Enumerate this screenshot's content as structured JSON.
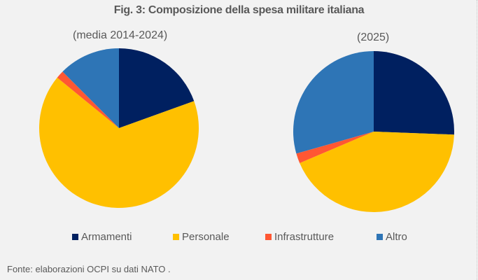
{
  "chart_data": [
    {
      "type": "pie",
      "title": "Fig. 3: Composizione della spesa militare italiana",
      "subtitle": "(media 2014-2024)",
      "categories": [
        "Armamenti",
        "Personale",
        "Infrastrutture",
        "Altro"
      ],
      "values": [
        19.5,
        66.4,
        1.6,
        12.5
      ],
      "unit": "%",
      "colors": [
        "#002060",
        "#ffc000",
        "#ff5733",
        "#2e75b6"
      ]
    },
    {
      "type": "pie",
      "title": "Fig. 3: Composizione della spesa militare italiana",
      "subtitle": "(2025)",
      "categories": [
        "Armamenti",
        "Personale",
        "Infrastrutture",
        "Altro"
      ],
      "values": [
        25.6,
        43.0,
        2.0,
        29.4
      ],
      "unit": "%",
      "colors": [
        "#002060",
        "#ffc000",
        "#ff5733",
        "#2e75b6"
      ]
    }
  ],
  "title": "Fig. 3: Composizione della spesa militare italiana",
  "subtitles": [
    "(media 2014-2024)",
    "(2025)"
  ],
  "legend": {
    "position": "bottom",
    "items": [
      {
        "label": "Armamenti",
        "color": "#002060"
      },
      {
        "label": "Personale",
        "color": "#ffc000"
      },
      {
        "label": "Infrastrutture",
        "color": "#ff5733"
      },
      {
        "label": "Altro",
        "color": "#2e75b6"
      }
    ]
  },
  "source": "Fonte: elaborazioni OCPI su dati NATO ."
}
